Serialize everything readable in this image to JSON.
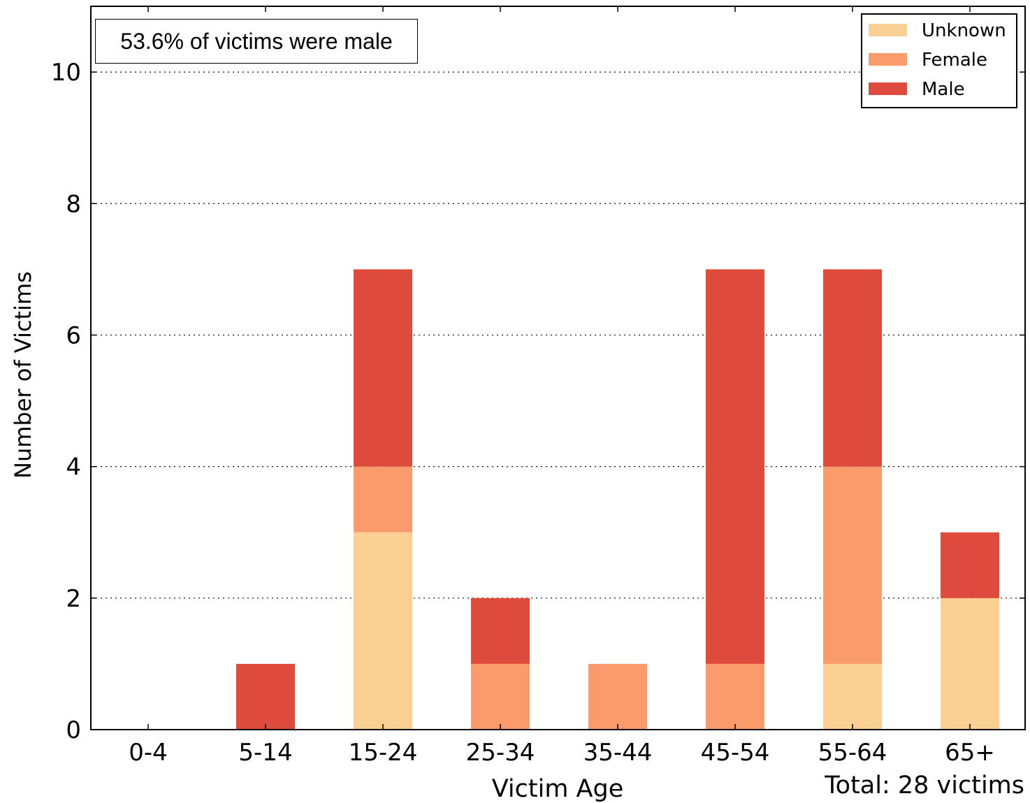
{
  "chart_data": {
    "type": "bar",
    "stacked": true,
    "categories": [
      "0-4",
      "5-14",
      "15-24",
      "25-34",
      "35-44",
      "45-54",
      "55-64",
      "65+"
    ],
    "series": [
      {
        "name": "Unknown",
        "color": "#fbd093",
        "values": [
          0,
          0,
          3,
          0,
          0,
          0,
          1,
          2
        ]
      },
      {
        "name": "Female",
        "color": "#f99b6b",
        "values": [
          0,
          0,
          1,
          1,
          1,
          1,
          3,
          0
        ]
      },
      {
        "name": "Male",
        "color": "#de4a3c",
        "values": [
          0,
          1,
          3,
          1,
          0,
          6,
          3,
          1
        ]
      }
    ],
    "xlabel": "Victim Age",
    "ylabel": "Number of Victims",
    "ylim": [
      0,
      11
    ],
    "yticks": [
      0,
      2,
      4,
      6,
      8,
      10
    ],
    "grid": "horizontal dotted",
    "legend": "top-right",
    "legend_order": [
      "Unknown",
      "Female",
      "Male"
    ]
  },
  "annotation": "53.6% of victims were male",
  "total_note": "Total: 28 victims"
}
